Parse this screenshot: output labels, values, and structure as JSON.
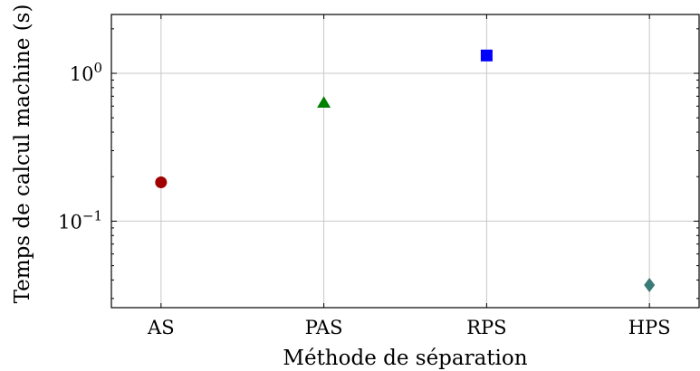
{
  "chart_data": {
    "type": "scatter",
    "xlabel": "Méthode de séparation",
    "ylabel": "Temps de calcul machine (s)",
    "categories": [
      "AS",
      "PAS",
      "RPS",
      "HPS"
    ],
    "y_scale": "log",
    "ylim": [
      0.026,
      2.5
    ],
    "y_ticks": [
      {
        "value": 1,
        "base": "10",
        "exp": "0"
      },
      {
        "value": 0.1,
        "base": "10",
        "exp": "−1"
      }
    ],
    "grid": true,
    "points": [
      {
        "category": "AS",
        "value": 0.183,
        "marker": "circle",
        "color": "#a00000"
      },
      {
        "category": "PAS",
        "value": 0.63,
        "marker": "triangle",
        "color": "#008000"
      },
      {
        "category": "RPS",
        "value": 1.32,
        "marker": "square",
        "color": "#0000ff"
      },
      {
        "category": "HPS",
        "value": 0.037,
        "marker": "diamond",
        "color": "#3a7a78"
      }
    ]
  }
}
